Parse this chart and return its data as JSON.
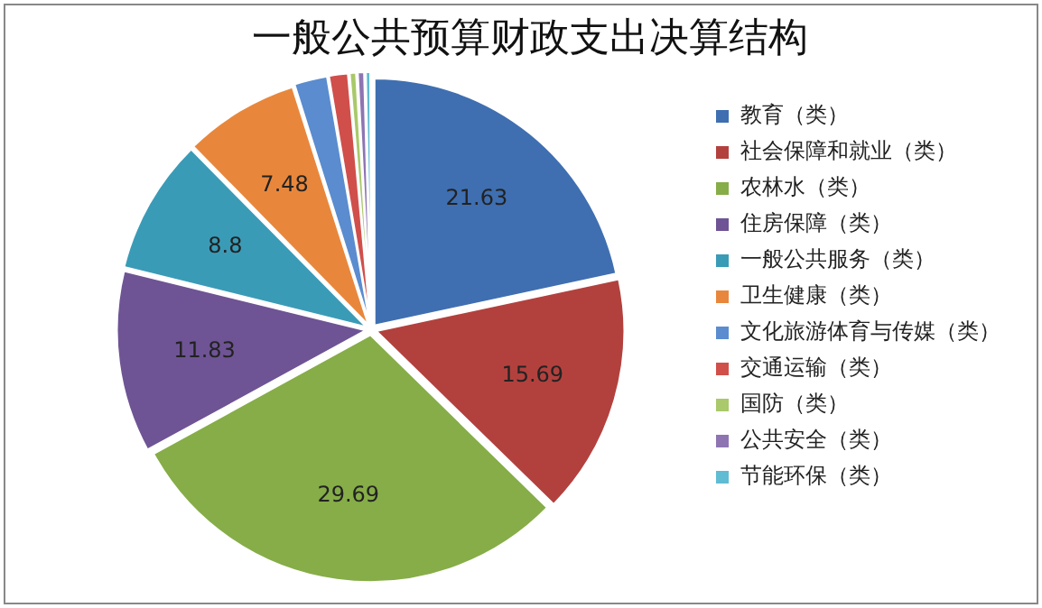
{
  "chart_data": {
    "type": "pie",
    "title": "一般公共预算财政支出决算结构",
    "categories": [
      "教育（类）",
      "社会保障和就业（类）",
      "农林水（类）",
      "住房保障（类）",
      "一般公共服务（类）",
      "卫生健康（类）",
      "文化旅游体育与传媒（类）",
      "交通运输（类）",
      "国防（类）",
      "公共安全（类）",
      "节能环保（类）"
    ],
    "values": [
      21.63,
      15.69,
      29.69,
      11.83,
      8.8,
      7.48,
      2.2,
      1.3,
      0.5,
      0.5,
      0.38
    ],
    "colors": [
      "#3f6fb0",
      "#b2413e",
      "#86ad48",
      "#6e5494",
      "#3a9bb7",
      "#e8873c",
      "#5a8ccf",
      "#d04f4b",
      "#a9c96a",
      "#8e75b2",
      "#5fbcd3"
    ],
    "value_labels": [
      "21.63",
      "15.69",
      "29.69",
      "11.83",
      "8.8",
      "7.48",
      null,
      null,
      null,
      null,
      null
    ],
    "legend": "right"
  }
}
